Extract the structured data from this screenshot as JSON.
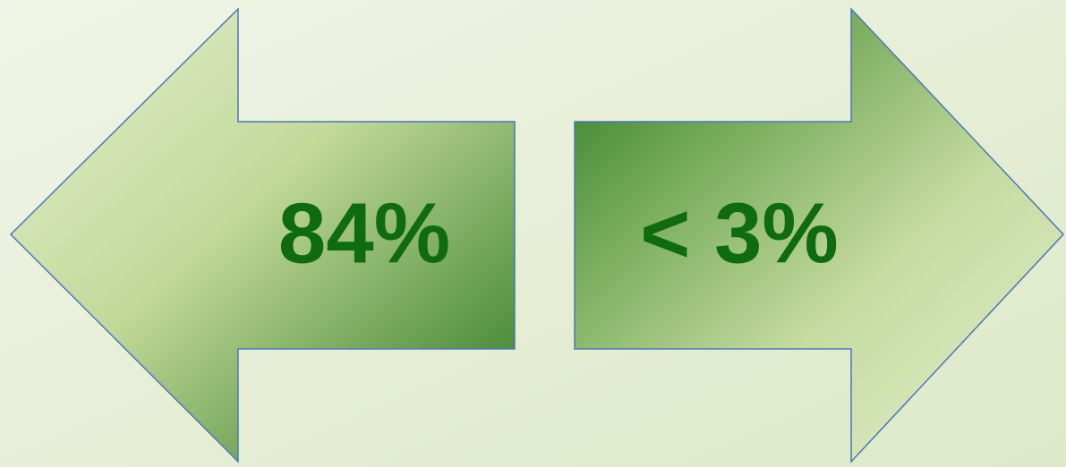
{
  "arrows": [
    {
      "label": "84%"
    },
    {
      "label": "< 3%"
    }
  ]
}
